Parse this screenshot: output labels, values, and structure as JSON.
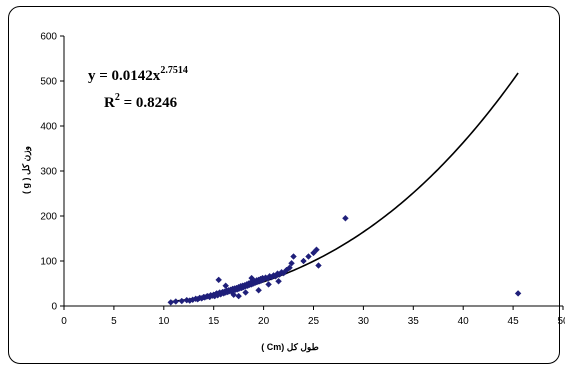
{
  "chart_data": {
    "type": "scatter",
    "xlabel": "طول کل (Cm )",
    "ylabel": "وزن کل ( g )",
    "xlim": [
      0,
      50
    ],
    "ylim": [
      0,
      600
    ],
    "xticks": [
      0,
      5,
      10,
      15,
      20,
      25,
      30,
      35,
      40,
      45,
      50
    ],
    "yticks": [
      0,
      100,
      200,
      300,
      400,
      500,
      600
    ],
    "grid": false,
    "marker_color": "#1f1f7a",
    "trend_color": "#000000",
    "equation": {
      "line1_base": "y = 0.0142x",
      "line1_exponent": "2.7514",
      "line2_base": "R",
      "line2_exponent": "2",
      "line2_rest": " = 0.8246"
    },
    "trendline": {
      "model": "power",
      "a": 0.0142,
      "b": 2.7514,
      "x_range": [
        10.5,
        45.5
      ]
    },
    "points": [
      [
        10.7,
        8
      ],
      [
        11.2,
        10
      ],
      [
        11.8,
        11
      ],
      [
        12.3,
        13
      ],
      [
        12.6,
        12
      ],
      [
        12.9,
        14
      ],
      [
        13.2,
        16
      ],
      [
        13.4,
        15
      ],
      [
        13.6,
        18
      ],
      [
        13.8,
        17
      ],
      [
        14.0,
        20
      ],
      [
        14.1,
        19
      ],
      [
        14.3,
        21
      ],
      [
        14.4,
        22
      ],
      [
        14.6,
        20
      ],
      [
        14.7,
        24
      ],
      [
        14.9,
        23
      ],
      [
        15.0,
        25
      ],
      [
        15.1,
        22
      ],
      [
        15.2,
        26
      ],
      [
        15.3,
        28
      ],
      [
        15.4,
        24
      ],
      [
        15.5,
        27
      ],
      [
        15.6,
        30
      ],
      [
        15.7,
        26
      ],
      [
        15.8,
        29
      ],
      [
        15.9,
        31
      ],
      [
        16.0,
        28
      ],
      [
        16.1,
        32
      ],
      [
        16.2,
        30
      ],
      [
        16.3,
        34
      ],
      [
        16.4,
        31
      ],
      [
        16.5,
        35
      ],
      [
        16.6,
        33
      ],
      [
        16.7,
        36
      ],
      [
        16.8,
        32
      ],
      [
        16.9,
        38
      ],
      [
        17.0,
        35
      ],
      [
        17.1,
        39
      ],
      [
        17.2,
        36
      ],
      [
        17.3,
        40
      ],
      [
        17.4,
        37
      ],
      [
        17.5,
        42
      ],
      [
        17.6,
        39
      ],
      [
        17.7,
        44
      ],
      [
        17.8,
        40
      ],
      [
        17.9,
        45
      ],
      [
        18.0,
        42
      ],
      [
        18.1,
        46
      ],
      [
        18.2,
        44
      ],
      [
        18.3,
        48
      ],
      [
        18.4,
        45
      ],
      [
        18.5,
        50
      ],
      [
        18.6,
        47
      ],
      [
        18.7,
        52
      ],
      [
        18.8,
        48
      ],
      [
        18.9,
        53
      ],
      [
        19.0,
        50
      ],
      [
        19.1,
        55
      ],
      [
        19.2,
        52
      ],
      [
        19.3,
        57
      ],
      [
        19.4,
        54
      ],
      [
        19.5,
        58
      ],
      [
        19.6,
        55
      ],
      [
        19.7,
        60
      ],
      [
        19.8,
        57
      ],
      [
        19.9,
        62
      ],
      [
        20.0,
        59
      ],
      [
        20.2,
        63
      ],
      [
        20.4,
        61
      ],
      [
        20.6,
        66
      ],
      [
        20.8,
        64
      ],
      [
        21.0,
        68
      ],
      [
        21.2,
        66
      ],
      [
        21.4,
        72
      ],
      [
        21.6,
        70
      ],
      [
        21.8,
        75
      ],
      [
        22.0,
        73
      ],
      [
        22.3,
        80
      ],
      [
        22.6,
        85
      ],
      [
        22.8,
        95
      ],
      [
        23.0,
        110
      ],
      [
        15.5,
        58
      ],
      [
        16.2,
        45
      ],
      [
        17.0,
        25
      ],
      [
        17.5,
        22
      ],
      [
        18.2,
        30
      ],
      [
        18.8,
        62
      ],
      [
        19.5,
        35
      ],
      [
        20.5,
        48
      ],
      [
        21.5,
        55
      ],
      [
        24.0,
        100
      ],
      [
        24.5,
        110
      ],
      [
        25.0,
        118
      ],
      [
        25.3,
        125
      ],
      [
        25.5,
        90
      ],
      [
        28.2,
        195
      ],
      [
        45.5,
        28
      ]
    ]
  }
}
